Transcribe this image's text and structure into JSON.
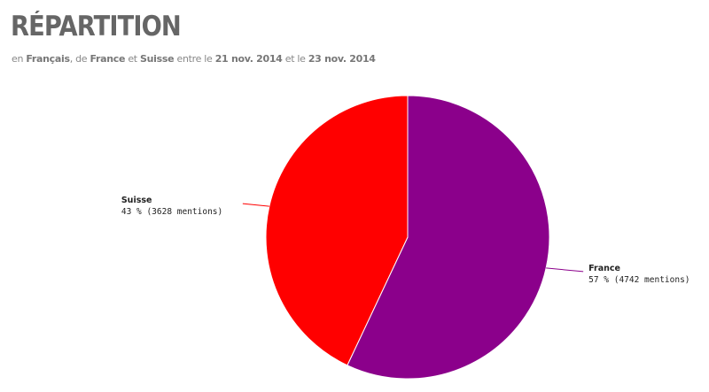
{
  "chart_data": {
    "type": "pie",
    "title": "RÉPARTITION",
    "subtitle_parts": [
      {
        "text": "en ",
        "bold": false
      },
      {
        "text": "Français",
        "bold": true
      },
      {
        "text": ", de ",
        "bold": false
      },
      {
        "text": "France",
        "bold": true
      },
      {
        "text": " et ",
        "bold": false
      },
      {
        "text": "Suisse",
        "bold": true
      },
      {
        "text": " entre le ",
        "bold": false
      },
      {
        "text": "21 nov. 2014",
        "bold": true
      },
      {
        "text": " et le ",
        "bold": false
      },
      {
        "text": "23 nov. 2014",
        "bold": true
      }
    ],
    "categories": [
      "France",
      "Suisse"
    ],
    "values": [
      57,
      43
    ],
    "value_labels": [
      "57 % (4742 mentions)",
      "43 % (3628 mentions)"
    ],
    "colors": [
      "#8b008b",
      "#ff0000"
    ]
  }
}
